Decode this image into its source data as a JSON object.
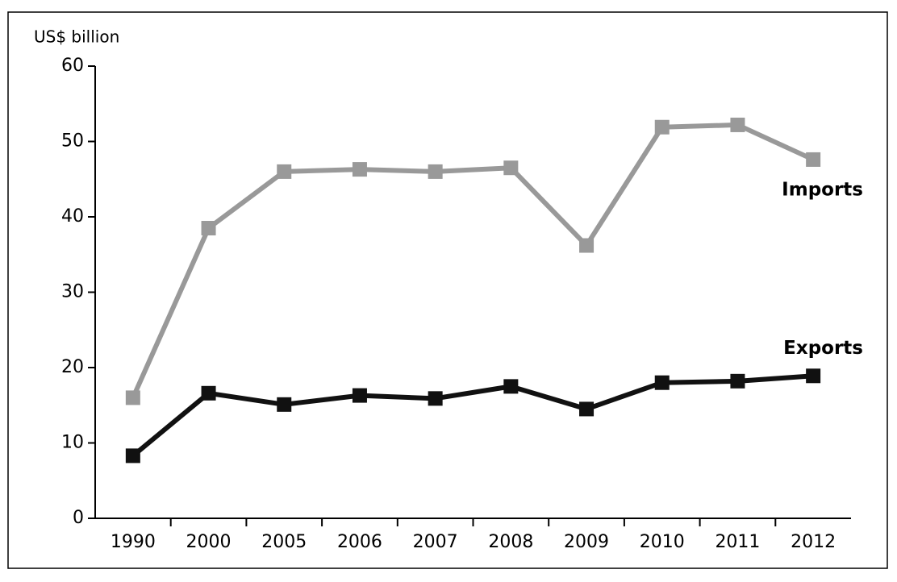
{
  "chart_data": {
    "type": "line",
    "y_label": "US$ billion",
    "categories": [
      "1990",
      "2000",
      "2005",
      "2006",
      "2007",
      "2008",
      "2009",
      "2010",
      "2011",
      "2012"
    ],
    "series": [
      {
        "name": "Imports",
        "color": "#999999",
        "values": [
          16,
          38.5,
          46,
          46.3,
          46,
          46.5,
          36.2,
          51.9,
          52.2,
          47.6
        ]
      },
      {
        "name": "Exports",
        "color": "#111111",
        "values": [
          8.3,
          16.6,
          15.1,
          16.3,
          15.9,
          17.5,
          14.5,
          18,
          18.2,
          18.9
        ]
      }
    ],
    "ylim": [
      0,
      60
    ],
    "yticks": [
      0,
      10,
      20,
      30,
      40,
      50,
      60
    ],
    "grid": false
  }
}
